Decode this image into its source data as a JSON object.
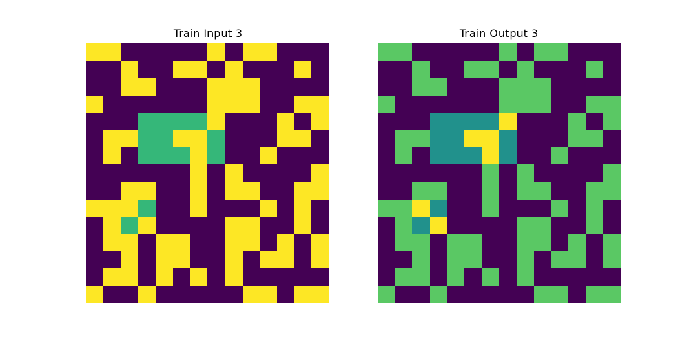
{
  "palette": {
    "0": "#440154",
    "1": "#fde725",
    "2": "#35b779",
    "3": "#5ac864",
    "4": "#21918c"
  },
  "panels": [
    {
      "title": "Train Input 3",
      "grid": [
        [
          1,
          1,
          0,
          0,
          0,
          0,
          0,
          1,
          0,
          1,
          1,
          0,
          0,
          0
        ],
        [
          0,
          0,
          1,
          0,
          0,
          1,
          1,
          0,
          1,
          0,
          0,
          0,
          1,
          0
        ],
        [
          0,
          0,
          1,
          1,
          0,
          0,
          0,
          1,
          1,
          1,
          0,
          0,
          0,
          0
        ],
        [
          1,
          0,
          0,
          0,
          0,
          0,
          0,
          1,
          1,
          1,
          0,
          0,
          1,
          1
        ],
        [
          0,
          0,
          0,
          2,
          2,
          2,
          2,
          1,
          0,
          0,
          0,
          1,
          0,
          1
        ],
        [
          0,
          1,
          1,
          2,
          2,
          1,
          1,
          2,
          0,
          0,
          0,
          1,
          1,
          0
        ],
        [
          0,
          1,
          0,
          2,
          2,
          2,
          1,
          2,
          0,
          0,
          1,
          0,
          0,
          0
        ],
        [
          0,
          0,
          0,
          0,
          0,
          0,
          1,
          0,
          1,
          0,
          0,
          0,
          0,
          1
        ],
        [
          0,
          0,
          1,
          1,
          0,
          0,
          1,
          0,
          1,
          1,
          0,
          0,
          1,
          1
        ],
        [
          1,
          1,
          1,
          2,
          0,
          0,
          1,
          0,
          0,
          0,
          1,
          0,
          1,
          0
        ],
        [
          0,
          1,
          2,
          1,
          0,
          0,
          0,
          0,
          1,
          1,
          0,
          0,
          1,
          0
        ],
        [
          0,
          1,
          1,
          0,
          1,
          1,
          0,
          0,
          1,
          1,
          0,
          1,
          0,
          1
        ],
        [
          0,
          0,
          1,
          0,
          1,
          1,
          0,
          0,
          1,
          0,
          1,
          1,
          0,
          1
        ],
        [
          0,
          1,
          1,
          0,
          1,
          0,
          1,
          0,
          1,
          0,
          0,
          0,
          0,
          0
        ],
        [
          1,
          0,
          0,
          1,
          0,
          0,
          0,
          0,
          0,
          1,
          1,
          0,
          1,
          1
        ]
      ]
    },
    {
      "title": "Train Output 3",
      "grid": [
        [
          3,
          3,
          0,
          0,
          0,
          0,
          0,
          3,
          0,
          3,
          3,
          0,
          0,
          0
        ],
        [
          0,
          0,
          3,
          0,
          0,
          3,
          3,
          0,
          3,
          0,
          0,
          0,
          3,
          0
        ],
        [
          0,
          0,
          3,
          3,
          0,
          0,
          0,
          3,
          3,
          3,
          0,
          0,
          0,
          0
        ],
        [
          3,
          0,
          0,
          0,
          0,
          0,
          0,
          3,
          3,
          3,
          0,
          0,
          3,
          3
        ],
        [
          0,
          0,
          0,
          4,
          4,
          4,
          4,
          1,
          0,
          0,
          0,
          3,
          0,
          3
        ],
        [
          0,
          3,
          3,
          4,
          4,
          1,
          1,
          4,
          0,
          0,
          0,
          3,
          3,
          0
        ],
        [
          0,
          3,
          0,
          4,
          4,
          4,
          1,
          4,
          0,
          0,
          3,
          0,
          0,
          0
        ],
        [
          0,
          0,
          0,
          0,
          0,
          0,
          3,
          0,
          3,
          0,
          0,
          0,
          0,
          3
        ],
        [
          0,
          0,
          3,
          3,
          0,
          0,
          3,
          0,
          3,
          3,
          0,
          0,
          3,
          3
        ],
        [
          3,
          3,
          1,
          4,
          0,
          0,
          3,
          0,
          0,
          0,
          3,
          0,
          3,
          0
        ],
        [
          0,
          3,
          4,
          1,
          0,
          0,
          0,
          0,
          3,
          3,
          0,
          0,
          3,
          0
        ],
        [
          0,
          3,
          3,
          0,
          3,
          3,
          0,
          0,
          3,
          3,
          0,
          3,
          0,
          3
        ],
        [
          0,
          0,
          3,
          0,
          3,
          3,
          0,
          0,
          3,
          0,
          3,
          3,
          0,
          3
        ],
        [
          0,
          3,
          3,
          0,
          3,
          0,
          3,
          0,
          3,
          0,
          0,
          0,
          0,
          0
        ],
        [
          3,
          0,
          0,
          3,
          0,
          0,
          0,
          0,
          0,
          3,
          3,
          0,
          3,
          3
        ]
      ]
    }
  ]
}
